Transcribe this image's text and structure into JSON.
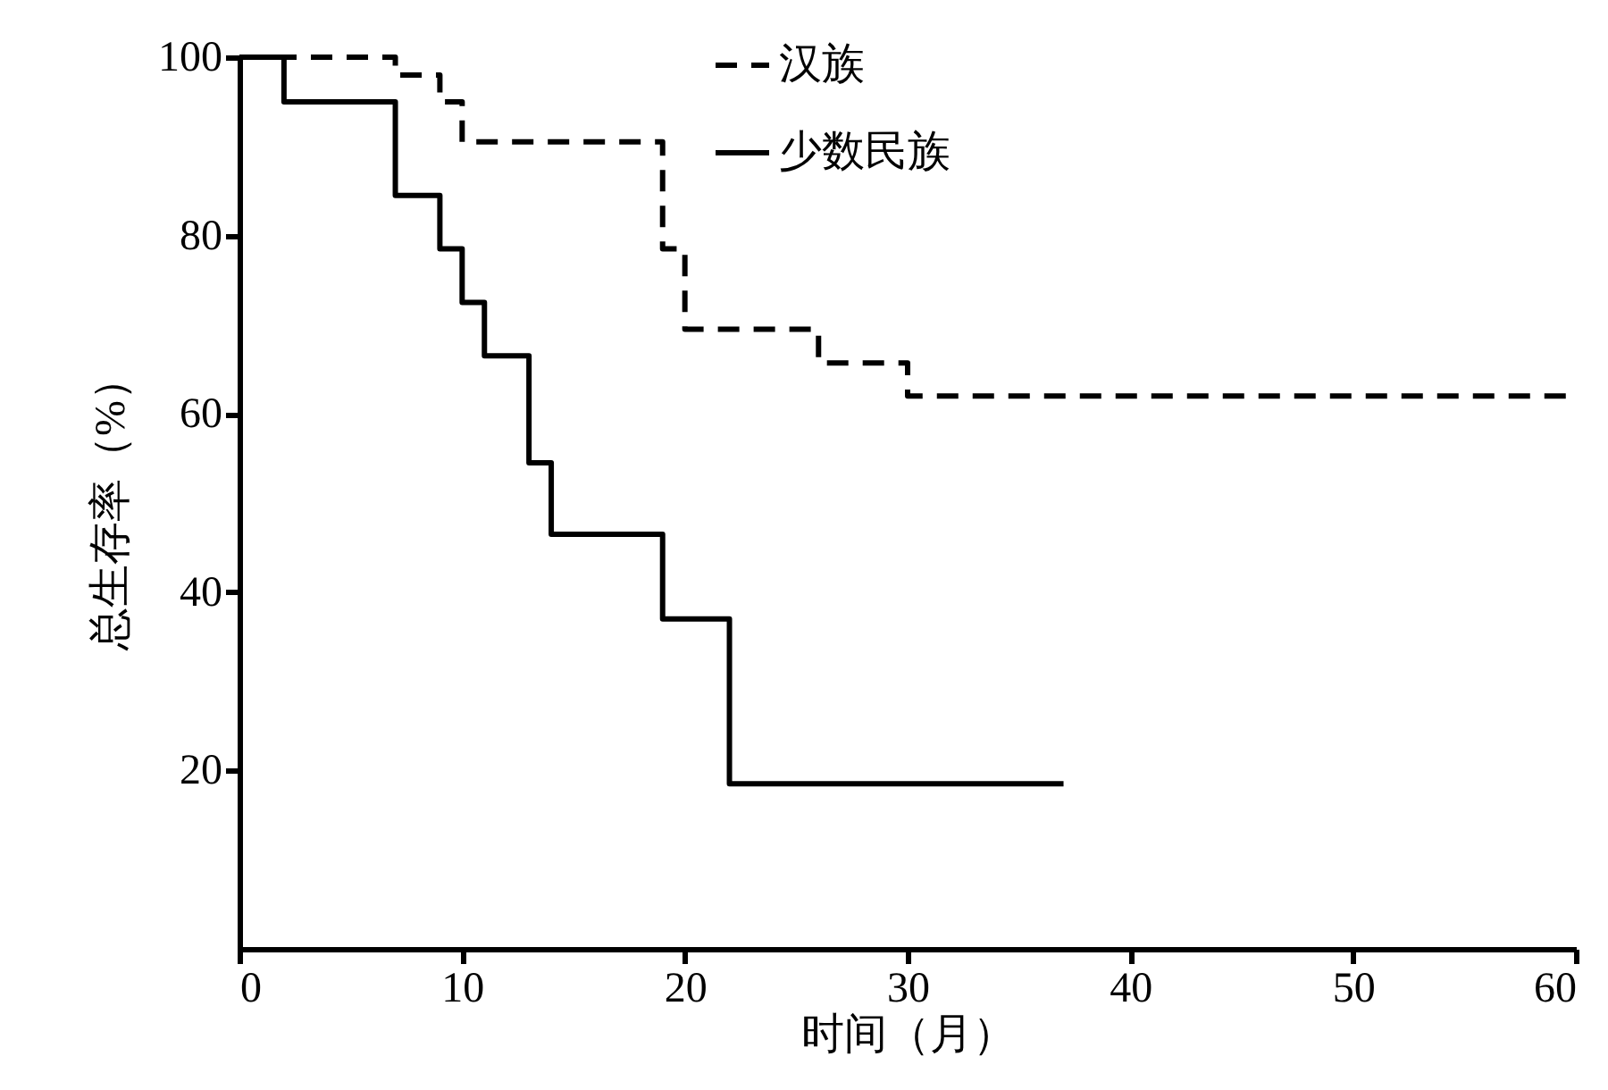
{
  "chart_data": {
    "type": "step",
    "xlabel": "时间（月）",
    "ylabel": "总生存率（%）",
    "xlim": [
      0,
      60
    ],
    "xticks": [
      0,
      10,
      20,
      30,
      40,
      50,
      60
    ],
    "ylim": [
      0,
      100
    ],
    "yticks": [
      20,
      40,
      60,
      80,
      100
    ],
    "grid": false,
    "legend": "top",
    "series": [
      {
        "name": "汉族",
        "color": "#000000",
        "line_style": "dashed",
        "x": [
          0,
          7,
          9,
          10,
          19,
          20,
          26,
          30,
          60
        ],
        "values": [
          100,
          98,
          95,
          90.5,
          78.5,
          69.5,
          65.7,
          62,
          62
        ]
      },
      {
        "name": "少数民族",
        "color": "#000000",
        "line_style": "solid",
        "x": [
          0,
          2,
          7,
          9,
          10,
          11,
          13,
          14,
          19,
          22,
          37
        ],
        "values": [
          100,
          95,
          84.5,
          78.5,
          72.5,
          66.5,
          54.5,
          46.5,
          37,
          18.5,
          18.5
        ]
      }
    ]
  }
}
